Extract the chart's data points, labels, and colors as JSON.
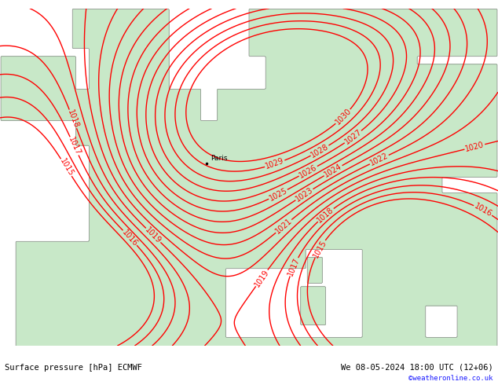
{
  "title_left": "Surface pressure [hPa] ECMWF",
  "title_right": "We 08-05-2024 18:00 UTC (12+06)",
  "copyright": "©weatheronline.co.uk",
  "background_color": "#ffffff",
  "land_color": "#c8e8c8",
  "sea_color": "#d8d8d8",
  "contour_color": "#ff0000",
  "contour_linewidth": 1.0,
  "label_fontsize": 7,
  "paris_label": "Paris",
  "paris_x": 2.35,
  "paris_y": 48.85,
  "fig_width": 6.34,
  "fig_height": 4.9,
  "dpi": 100,
  "contour_levels": [
    1015,
    1016,
    1017,
    1018,
    1019,
    1020,
    1021,
    1022,
    1023,
    1024,
    1025,
    1026,
    1027,
    1028,
    1029,
    1030
  ],
  "xlim": [
    -10.5,
    20.5
  ],
  "ylim": [
    37.5,
    58.5
  ]
}
